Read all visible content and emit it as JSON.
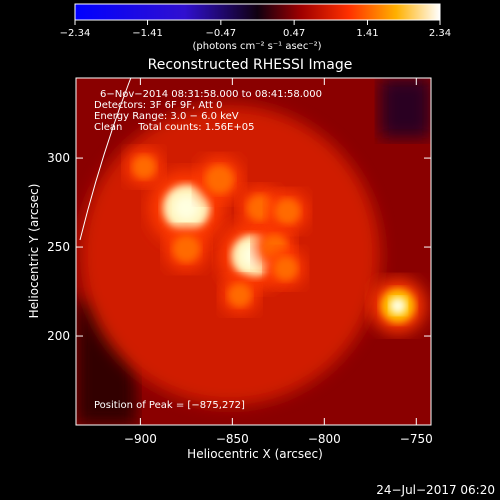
{
  "chart_data": {
    "type": "heatmap",
    "title": "Reconstructed RHESSI Image",
    "xlabel": "Heliocentric X (arcsec)",
    "ylabel": "Heliocentric Y (arcsec)",
    "xlim": [
      -935,
      -742
    ],
    "ylim": [
      150,
      345
    ],
    "xticks": [
      -900,
      -850,
      -800,
      -750
    ],
    "xtick_labels": [
      "−900",
      "−850",
      "−800",
      "−750"
    ],
    "yticks": [
      200,
      250,
      300
    ],
    "ytick_labels": [
      "200",
      "250",
      "300"
    ],
    "colorbar": {
      "range": [
        -2.34,
        2.34
      ],
      "ticks": [
        -2.34,
        -1.41,
        -0.47,
        0.47,
        1.41,
        2.34
      ],
      "tick_labels": [
        "−2.34",
        "−1.41",
        "−0.47",
        "0.47",
        "1.41",
        "2.34"
      ],
      "label": "(photons cm⁻² s⁻¹ asec⁻²)"
    },
    "annotations": {
      "time": "6−Nov−2014 08:31:58.000 to 08:41:58.000",
      "detectors": "Detectors: 3F 6F 9F, Att 0",
      "energy": "Energy Range: 3.0 − 6.0 keV",
      "clean": "Clean     Total counts: 1.56E+05",
      "peak": "Position of Peak = [−875,272]"
    },
    "sources": [
      {
        "x": -875,
        "y": 272,
        "value": 2.34
      },
      {
        "x": -839,
        "y": 245,
        "value": 2.05
      },
      {
        "x": -760,
        "y": 217,
        "value": 1.45
      },
      {
        "x": -857,
        "y": 288,
        "value": 1.05
      },
      {
        "x": -875,
        "y": 249,
        "value": 0.95
      },
      {
        "x": -835,
        "y": 272,
        "value": 0.9
      },
      {
        "x": -820,
        "y": 270,
        "value": 0.85
      },
      {
        "x": -827,
        "y": 250,
        "value": 0.8
      },
      {
        "x": -821,
        "y": 238,
        "value": 0.75
      },
      {
        "x": -898,
        "y": 295,
        "value": 0.7
      },
      {
        "x": -846,
        "y": 223,
        "value": 0.7
      }
    ],
    "limb_arc": true
  },
  "footer": {
    "timestamp": "24−Jul−2017 06:20"
  }
}
